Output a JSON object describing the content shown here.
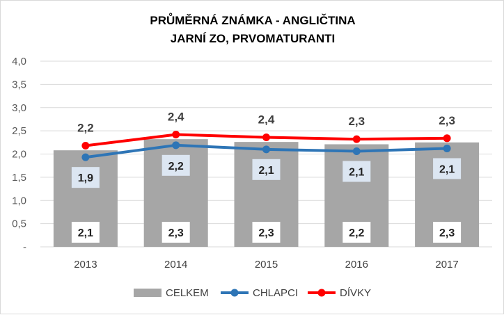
{
  "chart_data": {
    "type": "bar",
    "title": [
      "PRŮMĚRNÁ ZNÁMKA - ANGLIČTINA",
      "JARNÍ ZO, PRVOMATURANTI"
    ],
    "categories": [
      "2013",
      "2014",
      "2015",
      "2016",
      "2017"
    ],
    "ylim": [
      0,
      4
    ],
    "yticks": [
      "-",
      "0,5",
      "1,0",
      "1,5",
      "2,0",
      "2,5",
      "3,0",
      "3,5",
      "4,0"
    ],
    "grid": true,
    "legend_position": "bottom",
    "series": [
      {
        "name": "CELKEM",
        "kind": "bar",
        "color": "#a6a6a6",
        "values": [
          2.08,
          2.32,
          2.26,
          2.21,
          2.25
        ],
        "labels": [
          "2,1",
          "2,3",
          "2,3",
          "2,2",
          "2,3"
        ]
      },
      {
        "name": "CHLAPCI",
        "kind": "line",
        "color": "#2e75b6",
        "values": [
          1.93,
          2.19,
          2.1,
          2.06,
          2.12
        ],
        "labels": [
          "1,9",
          "2,2",
          "2,1",
          "2,1",
          "2,1"
        ]
      },
      {
        "name": "DÍVKY",
        "kind": "line",
        "color": "#ff0000",
        "values": [
          2.18,
          2.42,
          2.36,
          2.32,
          2.34
        ],
        "labels": [
          "2,2",
          "2,4",
          "2,4",
          "2,3",
          "2,3"
        ]
      }
    ]
  }
}
